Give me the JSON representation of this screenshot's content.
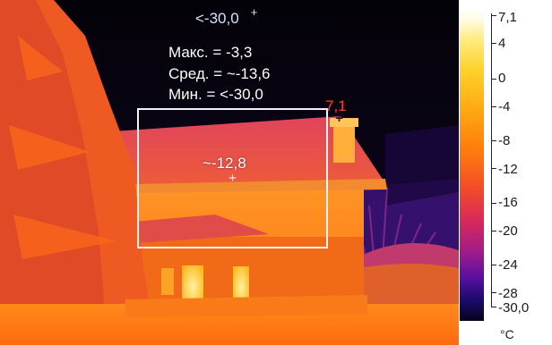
{
  "thermal_image": {
    "top_reading": "<-30,0",
    "stats": {
      "max_label": "Макс. = -3,3",
      "avg_label": "Сред. = ~-13,6",
      "min_label": "Мин. = <-30,0"
    },
    "roi_avg": "~-12,8",
    "hotspot": "7,1"
  },
  "scale": {
    "unit": "°C",
    "ticks": [
      "7,1",
      "4",
      "0",
      "-4",
      "-8",
      "-12",
      "-16",
      "-20",
      "-24",
      "-28",
      "-30,0"
    ]
  },
  "icons": [
    "crosshair-icon"
  ]
}
